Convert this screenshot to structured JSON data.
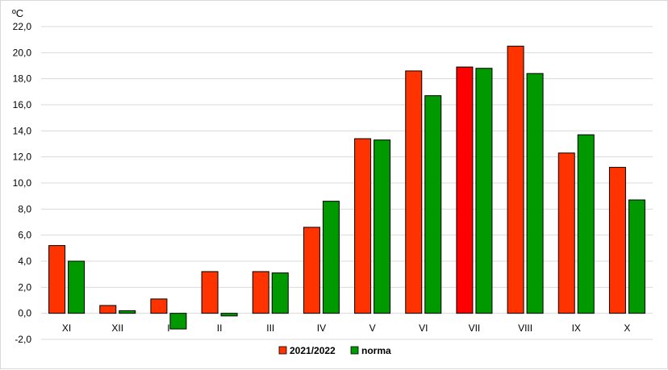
{
  "chart_data": {
    "type": "bar",
    "unit_label": "ºC",
    "title": "",
    "xlabel": "",
    "ylabel": "",
    "ylim": [
      -2.0,
      22.0
    ],
    "y_ticks": [
      "-2,0",
      "0,0",
      "2,0",
      "4,0",
      "6,0",
      "8,0",
      "10,0",
      "12,0",
      "14,0",
      "16,0",
      "18,0",
      "20,0",
      "22,0"
    ],
    "grid": true,
    "legend_position": "bottom",
    "categories": [
      "XI",
      "XII",
      "I",
      "II",
      "III",
      "IV",
      "V",
      "VI",
      "VII",
      "VIII",
      "IX",
      "X"
    ],
    "series": [
      {
        "name": "2021/2022",
        "color": "#ff3300",
        "values": [
          5.2,
          0.6,
          1.1,
          3.2,
          3.2,
          6.6,
          13.4,
          18.6,
          18.9,
          20.5,
          12.3,
          11.2
        ],
        "highlight": {
          "index": 8,
          "color": "#ff0000"
        }
      },
      {
        "name": "norma",
        "color": "#009900",
        "values": [
          4.0,
          0.2,
          -1.2,
          -0.2,
          3.1,
          8.6,
          13.3,
          16.7,
          18.8,
          18.4,
          13.7,
          8.7
        ]
      }
    ]
  }
}
